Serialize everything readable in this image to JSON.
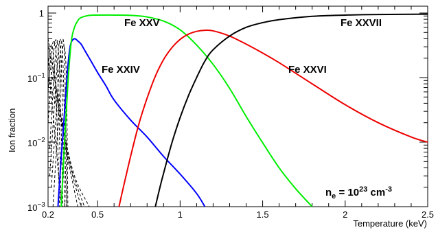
{
  "chart_data": {
    "type": "line",
    "xlabel": "Temperature (keV)",
    "ylabel": "Ion fraction",
    "xlim": [
      0.2,
      2.5
    ],
    "ylim": [
      0.001,
      1.2
    ],
    "yscale": "log",
    "grid": false,
    "x_ticks": [
      {
        "value": 0.2,
        "label": "0.2"
      },
      {
        "value": 0.5,
        "label": "0.5"
      },
      {
        "value": 1.0,
        "label": "1"
      },
      {
        "value": 1.5,
        "label": "1.5"
      },
      {
        "value": 2.0,
        "label": "2"
      },
      {
        "value": 2.5,
        "label": "2.5"
      }
    ],
    "y_ticks": [
      {
        "value": 1,
        "label": "1"
      },
      {
        "value": 0.1,
        "base": "10",
        "exp": "−1"
      },
      {
        "value": 0.01,
        "base": "10",
        "exp": "−2"
      },
      {
        "value": 0.001,
        "base": "10",
        "exp": "−3"
      }
    ],
    "annotation": {
      "text_main": "n",
      "text_sub": "e",
      "text_mid": " = 10",
      "text_sup1": "23",
      "text_unit": " cm",
      "text_sup2": "-3"
    },
    "series": [
      {
        "name": "Fe XXIV",
        "color": "#0000ff",
        "style": "solid",
        "x": [
          0.26,
          0.27,
          0.28,
          0.29,
          0.3,
          0.31,
          0.32,
          0.33,
          0.34,
          0.36,
          0.38,
          0.4,
          0.42,
          0.45,
          0.5,
          0.55,
          0.6,
          0.7,
          0.8,
          0.9,
          1.0,
          1.1,
          1.15
        ],
        "y": [
          0.001,
          0.0025,
          0.006,
          0.013,
          0.03,
          0.07,
          0.15,
          0.26,
          0.35,
          0.4,
          0.37,
          0.33,
          0.27,
          0.2,
          0.12,
          0.075,
          0.045,
          0.022,
          0.012,
          0.006,
          0.0032,
          0.0016,
          0.001
        ]
      },
      {
        "name": "Fe XXV",
        "color": "#00ee00",
        "style": "solid",
        "x": [
          0.28,
          0.3,
          0.32,
          0.34,
          0.36,
          0.38,
          0.4,
          0.45,
          0.5,
          0.6,
          0.7,
          0.8,
          0.9,
          1.0,
          1.1,
          1.2,
          1.3,
          1.4,
          1.5,
          1.6,
          1.7,
          1.8
        ],
        "y": [
          0.001,
          0.01,
          0.08,
          0.35,
          0.6,
          0.76,
          0.85,
          0.92,
          0.93,
          0.93,
          0.92,
          0.87,
          0.75,
          0.55,
          0.32,
          0.16,
          0.068,
          0.025,
          0.0098,
          0.004,
          0.0019,
          0.001
        ]
      },
      {
        "name": "Fe XXVI",
        "color": "#ee0000",
        "style": "solid",
        "x": [
          0.63,
          0.65,
          0.7,
          0.75,
          0.8,
          0.85,
          0.9,
          0.95,
          1.0,
          1.05,
          1.1,
          1.15,
          1.2,
          1.3,
          1.4,
          1.5,
          1.6,
          1.8,
          2.0,
          2.2,
          2.4,
          2.5
        ],
        "y": [
          0.001,
          0.0017,
          0.006,
          0.019,
          0.048,
          0.105,
          0.19,
          0.29,
          0.39,
          0.47,
          0.52,
          0.54,
          0.53,
          0.44,
          0.33,
          0.24,
          0.17,
          0.08,
          0.038,
          0.02,
          0.012,
          0.01
        ]
      },
      {
        "name": "Fe XXVII",
        "color": "#000000",
        "style": "solid",
        "x": [
          0.85,
          0.88,
          0.9,
          0.95,
          1.0,
          1.05,
          1.1,
          1.15,
          1.2,
          1.3,
          1.4,
          1.5,
          1.6,
          1.8,
          2.0,
          2.2,
          2.5
        ],
        "y": [
          0.001,
          0.0021,
          0.0033,
          0.0097,
          0.024,
          0.052,
          0.1,
          0.18,
          0.27,
          0.44,
          0.6,
          0.71,
          0.79,
          0.89,
          0.93,
          0.95,
          0.96
        ]
      }
    ],
    "lower_ion_curves": [
      {
        "x": [
          0.2,
          0.215,
          0.23,
          0.25,
          0.27
        ],
        "y": [
          0.15,
          0.3,
          0.25,
          0.04,
          0.001
        ]
      },
      {
        "x": [
          0.2,
          0.22,
          0.24,
          0.26,
          0.28
        ],
        "y": [
          0.06,
          0.25,
          0.35,
          0.08,
          0.001
        ]
      },
      {
        "x": [
          0.2,
          0.23,
          0.25,
          0.27,
          0.29
        ],
        "y": [
          0.02,
          0.2,
          0.38,
          0.12,
          0.001
        ]
      },
      {
        "x": [
          0.21,
          0.24,
          0.26,
          0.28,
          0.3
        ],
        "y": [
          0.008,
          0.15,
          0.38,
          0.15,
          0.001
        ]
      },
      {
        "x": [
          0.21,
          0.25,
          0.27,
          0.29,
          0.31
        ],
        "y": [
          0.003,
          0.1,
          0.36,
          0.18,
          0.001
        ]
      },
      {
        "x": [
          0.22,
          0.26,
          0.28,
          0.3,
          0.315
        ],
        "y": [
          0.002,
          0.07,
          0.33,
          0.2,
          0.001
        ]
      },
      {
        "x": [
          0.23,
          0.27,
          0.29,
          0.31,
          0.32
        ],
        "y": [
          0.001,
          0.05,
          0.3,
          0.12,
          0.001
        ]
      },
      {
        "x": [
          0.2,
          0.26,
          0.32,
          0.4
        ],
        "y": [
          0.3,
          0.05,
          0.006,
          0.001
        ]
      },
      {
        "x": [
          0.2,
          0.27,
          0.34,
          0.42
        ],
        "y": [
          0.2,
          0.03,
          0.004,
          0.001
        ]
      },
      {
        "x": [
          0.2,
          0.24,
          0.3,
          0.38
        ],
        "y": [
          0.4,
          0.1,
          0.01,
          0.001
        ]
      },
      {
        "x": [
          0.2,
          0.28,
          0.36,
          0.45
        ],
        "y": [
          0.1,
          0.02,
          0.003,
          0.001
        ]
      },
      {
        "x": [
          0.2,
          0.22,
          0.25,
          0.28
        ],
        "y": [
          0.2,
          0.05,
          0.008,
          0.001
        ]
      }
    ]
  }
}
